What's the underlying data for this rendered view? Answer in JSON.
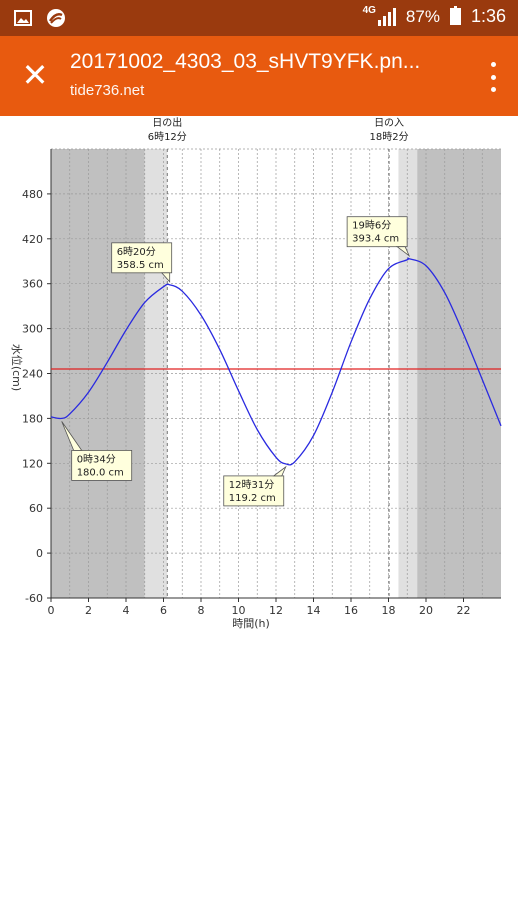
{
  "status_bar": {
    "left_icons": [
      "image-icon",
      "browser-icon"
    ],
    "network": "4G",
    "battery": "87%",
    "time": "1:36"
  },
  "app_bar": {
    "title": "20171002_4303_03_sHVT9YFK.pn...",
    "subtitle": "tide736.net"
  },
  "chart_data": {
    "type": "line",
    "xlabel": "時間(h)",
    "ylabel": "水位(cm)",
    "xlim": [
      0,
      24
    ],
    "ylim": [
      -60,
      540
    ],
    "x_ticks": [
      0,
      2,
      4,
      6,
      8,
      10,
      12,
      14,
      16,
      18,
      20,
      22
    ],
    "y_ticks": [
      -60,
      0,
      60,
      120,
      180,
      240,
      300,
      360,
      420,
      480
    ],
    "grid": true,
    "reference_line": {
      "value": 246,
      "color": "#e02020"
    },
    "series": [
      {
        "color": "#2a2ae0",
        "x": [
          0,
          0.57,
          1,
          2,
          3,
          4,
          5,
          6,
          6.33,
          7,
          8,
          9,
          10,
          11,
          12,
          12.52,
          13,
          14,
          15,
          16,
          17,
          18,
          19,
          19.1,
          20,
          21,
          22,
          23,
          24
        ],
        "y": [
          182,
          180,
          186,
          215,
          255,
          298,
          335,
          356,
          358.5,
          350,
          318,
          272,
          217,
          165,
          128,
          119.2,
          122,
          157,
          215,
          282,
          340,
          380,
          392,
          393.4,
          384,
          348,
          293,
          232,
          170
        ]
      }
    ],
    "annotations": [
      {
        "time": "0時34分",
        "value": "180.0 cm",
        "x": 0.57,
        "y": 180.0
      },
      {
        "time": "6時20分",
        "value": "358.5 cm",
        "x": 6.33,
        "y": 358.5
      },
      {
        "time": "12時31分",
        "value": "119.2 cm",
        "x": 12.52,
        "y": 119.2
      },
      {
        "time": "19時6分",
        "value": "393.4 cm",
        "x": 19.1,
        "y": 393.4
      }
    ],
    "sunrise": {
      "label": "日の出",
      "time": "6時12分",
      "hour": 6.2
    },
    "sunset": {
      "label": "日の入",
      "time": "18時2分",
      "hour": 18.03
    },
    "night_color": "#c0c0c0",
    "twilight_color": "#e0e0e0"
  }
}
